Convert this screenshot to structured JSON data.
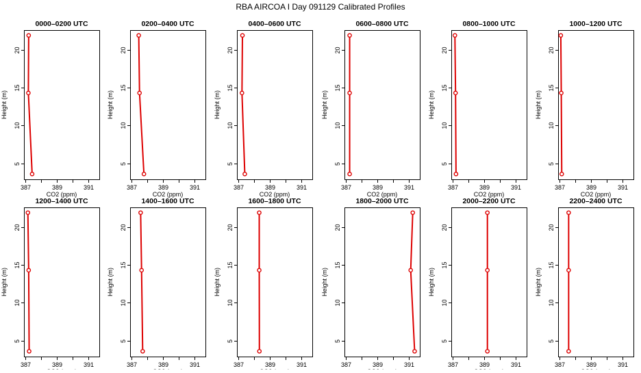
{
  "title": "RBA AIRCOA I  Day 091129  Calibrated Profiles",
  "colors": {
    "series": "#dd0000",
    "axis": "#000000",
    "background": "#ffffff"
  },
  "chart_data": {
    "type": "line",
    "title": "RBA AIRCOA I  Day 091129  Calibrated Profiles",
    "xlabel": "CO2 (ppm)",
    "ylabel": "Height (m)",
    "xlim": [
      386.9,
      391.7
    ],
    "ylim": [
      2.9,
      22.6
    ],
    "xticks": [
      387,
      388,
      389,
      390,
      391
    ],
    "xtick_labels": [
      "387",
      "",
      "389",
      "",
      "391"
    ],
    "yticks": [
      5,
      10,
      15,
      20
    ],
    "heights": [
      3.6,
      14.3,
      21.9
    ],
    "grid": false,
    "legend": "none",
    "panels": [
      {
        "title": "0000–0200 UTC",
        "x": [
          387.42,
          387.18,
          387.2
        ]
      },
      {
        "title": "0200–0400 UTC",
        "x": [
          387.78,
          387.5,
          387.45
        ]
      },
      {
        "title": "0400–0600 UTC",
        "x": [
          387.4,
          387.22,
          387.25
        ]
      },
      {
        "title": "0600–0800 UTC",
        "x": [
          387.23,
          387.23,
          387.23
        ]
      },
      {
        "title": "0800–1000 UTC",
        "x": [
          387.2,
          387.17,
          387.13
        ]
      },
      {
        "title": "1000–1200 UTC",
        "x": [
          387.13,
          387.1,
          387.07
        ]
      },
      {
        "title": "1200–1400 UTC",
        "x": [
          387.23,
          387.2,
          387.15
        ]
      },
      {
        "title": "1400–1600 UTC",
        "x": [
          387.7,
          387.63,
          387.57
        ]
      },
      {
        "title": "1600–1800 UTC",
        "x": [
          388.33,
          388.32,
          388.32
        ]
      },
      {
        "title": "1800–2000 UTC",
        "x": [
          391.37,
          391.12,
          391.25
        ]
      },
      {
        "title": "2000–2200 UTC",
        "x": [
          389.2,
          389.2,
          389.2
        ]
      },
      {
        "title": "2200–2400 UTC",
        "x": [
          387.57,
          387.57,
          387.57
        ]
      }
    ]
  }
}
